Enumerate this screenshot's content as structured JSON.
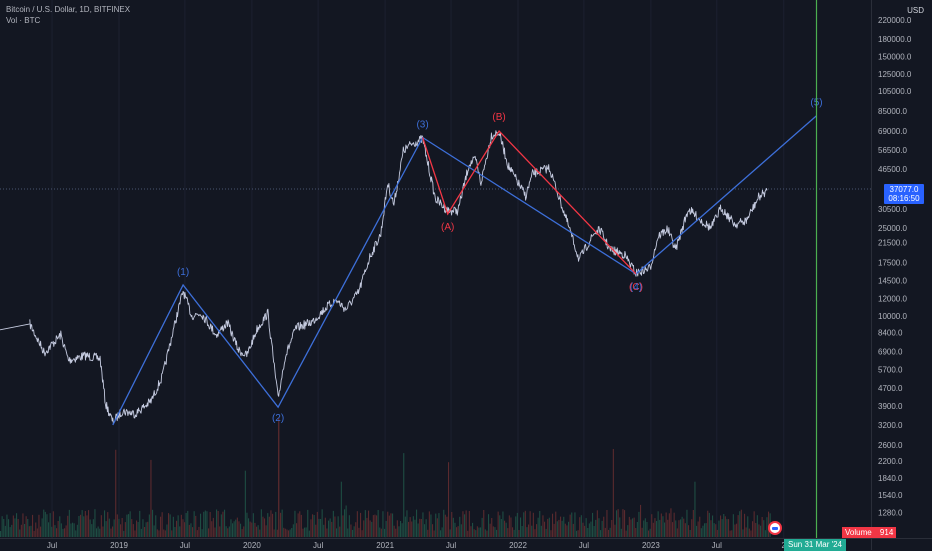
{
  "header": {
    "title": "Bitcoin / U.S. Dollar, 1D, BITFINEX",
    "indicator": "Vol · BTC"
  },
  "price_axis": {
    "currency": "USD",
    "ticks": [
      "220000.0",
      "180000.0",
      "150000.0",
      "125000.0",
      "105000.0",
      "85000.0",
      "69000.0",
      "56500.0",
      "46500.0",
      "37077.0",
      "30500.0",
      "25000.0",
      "21500.0",
      "17500.0",
      "14500.0",
      "12000.0",
      "10000.0",
      "8400.0",
      "6900.0",
      "5700.0",
      "4700.0",
      "3900.0",
      "3200.0",
      "2600.0",
      "2200.0",
      "1840.0",
      "1540.0",
      "1280.0"
    ],
    "last_price": "37077.0",
    "countdown": "08:16:50",
    "colors": {
      "last_price_bg": "#2962ff"
    }
  },
  "time_axis": {
    "labels": [
      "Jul",
      "2019",
      "Jul",
      "2020",
      "Jul",
      "2021",
      "Jul",
      "2022",
      "Jul",
      "2023",
      "Jul",
      "2"
    ],
    "cursor_label": "Sun 31 Mar '24"
  },
  "volume": {
    "label": "Volume",
    "value": "914"
  },
  "wave_labels": {
    "w1": "(1)",
    "w2": "(2)",
    "w3": "(3)",
    "w5": "(5)",
    "wa": "(A)",
    "wb": "(B)",
    "wc": "(C)",
    "w4": "(4)"
  },
  "colors": {
    "background": "#131722",
    "candle_line": "#c5cbe0",
    "impulse": "#3d6fd9",
    "correction": "#f23645",
    "cursor_line": "#4caf50",
    "volume_up": "#1e4d43",
    "volume_down": "#5a2a2e"
  },
  "chart_data": {
    "type": "line",
    "title": "Bitcoin / U.S. Dollar, 1D, BITFINEX",
    "log_scale": true,
    "x_range": [
      "2018-05-01",
      "2024-06-01"
    ],
    "y_range": [
      1150,
      260000
    ],
    "series": [
      {
        "name": "Bitcoin / U.S. Dollar",
        "points": [
          [
            "2018-05-01",
            9200
          ],
          [
            "2018-06-10",
            6800
          ],
          [
            "2018-07-25",
            8200
          ],
          [
            "2018-08-15",
            6300
          ],
          [
            "2018-10-01",
            6600
          ],
          [
            "2018-11-10",
            6400
          ],
          [
            "2018-11-25",
            4000
          ],
          [
            "2018-12-15",
            3300
          ],
          [
            "2019-01-10",
            3700
          ],
          [
            "2019-02-15",
            3600
          ],
          [
            "2019-03-30",
            4100
          ],
          [
            "2019-04-30",
            5300
          ],
          [
            "2019-05-30",
            8600
          ],
          [
            "2019-06-26",
            13000
          ],
          [
            "2019-07-20",
            10000
          ],
          [
            "2019-08-15",
            10300
          ],
          [
            "2019-09-25",
            8200
          ],
          [
            "2019-10-26",
            9300
          ],
          [
            "2019-11-25",
            7000
          ],
          [
            "2019-12-18",
            6600
          ],
          [
            "2020-01-15",
            8700
          ],
          [
            "2020-02-14",
            10300
          ],
          [
            "2020-03-13",
            4200
          ],
          [
            "2020-04-01",
            6500
          ],
          [
            "2020-05-01",
            8800
          ],
          [
            "2020-06-15",
            9400
          ],
          [
            "2020-07-25",
            11000
          ],
          [
            "2020-08-20",
            11800
          ],
          [
            "2020-09-15",
            10700
          ],
          [
            "2020-10-20",
            12800
          ],
          [
            "2020-11-20",
            18500
          ],
          [
            "2020-12-20",
            23500
          ],
          [
            "2021-01-08",
            40000
          ],
          [
            "2021-01-25",
            32000
          ],
          [
            "2021-02-20",
            56000
          ],
          [
            "2021-03-13",
            60000
          ],
          [
            "2021-04-14",
            63500
          ],
          [
            "2021-05-19",
            34000
          ],
          [
            "2021-06-22",
            30000
          ],
          [
            "2021-07-20",
            30000
          ],
          [
            "2021-08-20",
            49000
          ],
          [
            "2021-09-07",
            51000
          ],
          [
            "2021-09-21",
            40000
          ],
          [
            "2021-10-20",
            66000
          ],
          [
            "2021-11-10",
            68000
          ],
          [
            "2021-12-05",
            48000
          ],
          [
            "2022-01-22",
            35000
          ],
          [
            "2022-02-10",
            44000
          ],
          [
            "2022-03-28",
            47000
          ],
          [
            "2022-05-12",
            28000
          ],
          [
            "2022-06-18",
            18000
          ],
          [
            "2022-07-30",
            23800
          ],
          [
            "2022-08-15",
            24500
          ],
          [
            "2022-09-10",
            20000
          ],
          [
            "2022-10-20",
            19000
          ],
          [
            "2022-11-21",
            15600
          ],
          [
            "2022-12-30",
            16500
          ],
          [
            "2023-01-21",
            23000
          ],
          [
            "2023-02-16",
            24800
          ],
          [
            "2023-03-10",
            20000
          ],
          [
            "2023-04-14",
            30500
          ],
          [
            "2023-05-20",
            27000
          ],
          [
            "2023-06-15",
            25000
          ],
          [
            "2023-07-13",
            31000
          ],
          [
            "2023-08-20",
            26000
          ],
          [
            "2023-09-20",
            27000
          ],
          [
            "2023-10-24",
            34500
          ],
          [
            "2023-11-16",
            37077
          ]
        ]
      }
    ],
    "annotations": [
      {
        "label": "(1)",
        "x": "2019-06-26",
        "y": 13800
      },
      {
        "label": "(2)",
        "x": "2020-03-13",
        "y": 3850
      },
      {
        "label": "(3)",
        "x": "2021-04-14",
        "y": 64500
      },
      {
        "label": "(A)",
        "x": "2021-06-22",
        "y": 29000
      },
      {
        "label": "(B)",
        "x": "2021-11-10",
        "y": 69000
      },
      {
        "label": "(C)",
        "x": "2022-11-21",
        "y": 15500
      },
      {
        "label": "(4)",
        "x": "2022-11-21",
        "y": 15500
      },
      {
        "label": "(5)",
        "x": "2024-03-31",
        "y": 81000
      }
    ],
    "impulse_path": [
      [
        "2018-12-15",
        3200
      ],
      [
        "2019-06-26",
        13800
      ],
      [
        "2020-03-13",
        3850
      ],
      [
        "2021-04-14",
        64500
      ],
      [
        "2022-11-21",
        15500
      ],
      [
        "2024-03-31",
        81000
      ]
    ],
    "correction_path": [
      [
        "2021-04-14",
        64500
      ],
      [
        "2021-06-22",
        29000
      ],
      [
        "2021-11-10",
        69000
      ],
      [
        "2022-11-21",
        15500
      ]
    ],
    "cursor_date": "2024-03-31"
  }
}
